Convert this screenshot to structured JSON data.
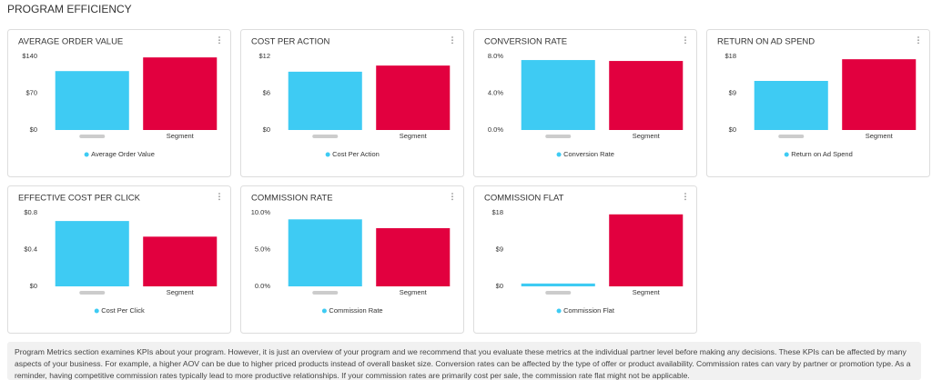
{
  "page_title": "PROGRAM EFFICIENCY",
  "chart_data": [
    {
      "type": "bar",
      "title": "AVERAGE ORDER VALUE",
      "categories": [
        null,
        "Segment"
      ],
      "colors": [
        "#3ecbf3",
        "#e2003f"
      ],
      "series": [
        {
          "name": "Average Order Value",
          "color": "#3ecbf3",
          "values": [
            112,
            138
          ]
        }
      ],
      "ylim": [
        0,
        140
      ],
      "yticks": [
        {
          "value": 0,
          "label": "$0"
        },
        {
          "value": 70,
          "label": "$70"
        },
        {
          "value": 140,
          "label": "$140"
        }
      ]
    },
    {
      "type": "bar",
      "title": "COST PER ACTION",
      "categories": [
        null,
        "Segment"
      ],
      "colors": [
        "#3ecbf3",
        "#e2003f"
      ],
      "series": [
        {
          "name": "Cost Per Action",
          "color": "#3ecbf3",
          "values": [
            9.5,
            10.5
          ]
        }
      ],
      "ylim": [
        0,
        12
      ],
      "yticks": [
        {
          "value": 0,
          "label": "$0"
        },
        {
          "value": 6,
          "label": "$6"
        },
        {
          "value": 12,
          "label": "$12"
        }
      ]
    },
    {
      "type": "bar",
      "title": "CONVERSION RATE",
      "categories": [
        null,
        "Segment"
      ],
      "colors": [
        "#3ecbf3",
        "#e2003f"
      ],
      "series": [
        {
          "name": "Conversion Rate",
          "color": "#3ecbf3",
          "values": [
            7.6,
            7.5
          ]
        }
      ],
      "ylim": [
        0,
        8
      ],
      "yticks": [
        {
          "value": 0,
          "label": "0.0%"
        },
        {
          "value": 4,
          "label": "4.0%"
        },
        {
          "value": 8,
          "label": "8.0%"
        }
      ]
    },
    {
      "type": "bar",
      "title": "RETURN ON AD SPEND",
      "categories": [
        null,
        "Segment"
      ],
      "colors": [
        "#3ecbf3",
        "#e2003f"
      ],
      "series": [
        {
          "name": "Return on Ad Spend",
          "color": "#3ecbf3",
          "values": [
            12,
            17.3
          ]
        }
      ],
      "ylim": [
        0,
        18
      ],
      "yticks": [
        {
          "value": 0,
          "label": "$0"
        },
        {
          "value": 9,
          "label": "$9"
        },
        {
          "value": 18,
          "label": "$18"
        }
      ]
    },
    {
      "type": "bar",
      "title": "EFFECTIVE COST PER CLICK",
      "categories": [
        null,
        "Segment"
      ],
      "colors": [
        "#3ecbf3",
        "#e2003f"
      ],
      "series": [
        {
          "name": "Cost Per Click",
          "color": "#3ecbf3",
          "values": [
            0.71,
            0.54
          ]
        }
      ],
      "ylim": [
        0,
        0.8
      ],
      "yticks": [
        {
          "value": 0,
          "label": "$0"
        },
        {
          "value": 0.4,
          "label": "$0.4"
        },
        {
          "value": 0.8,
          "label": "$0.8"
        }
      ]
    },
    {
      "type": "bar",
      "title": "COMMISSION RATE",
      "categories": [
        null,
        "Segment"
      ],
      "colors": [
        "#3ecbf3",
        "#e2003f"
      ],
      "series": [
        {
          "name": "Commission Rate",
          "color": "#3ecbf3",
          "values": [
            9.1,
            7.9
          ]
        }
      ],
      "ylim": [
        0,
        10
      ],
      "yticks": [
        {
          "value": 0,
          "label": "0.0%"
        },
        {
          "value": 5,
          "label": "5.0%"
        },
        {
          "value": 10,
          "label": "10.0%"
        }
      ]
    },
    {
      "type": "bar",
      "title": "COMMISSION FLAT",
      "categories": [
        null,
        "Segment"
      ],
      "colors": [
        "#3ecbf3",
        "#e2003f"
      ],
      "series": [
        {
          "name": "Commission Flat",
          "color": "#3ecbf3",
          "values": [
            0.7,
            17.6
          ]
        }
      ],
      "ylim": [
        0,
        18
      ],
      "yticks": [
        {
          "value": 0,
          "label": "$0"
        },
        {
          "value": 9,
          "label": "$9"
        },
        {
          "value": 18,
          "label": "$18"
        }
      ]
    }
  ],
  "note": "Program Metrics section examines KPIs about your program. However, it is just an overview of your program and we recommend that you evaluate these metrics at the individual partner level before making any decisions. These KPIs can be affected by many aspects of your business. For example, a higher AOV can be due to higher priced products instead of overall basket size. Conversion rates can be affected by the type of offer or product availability. Commission rates can vary by partner or promotion type. As a reminder, having competitive commission rates typically lead to more productive relationships. If your commission rates are primarily cost per sale, the commission rate flat might not be applicable."
}
